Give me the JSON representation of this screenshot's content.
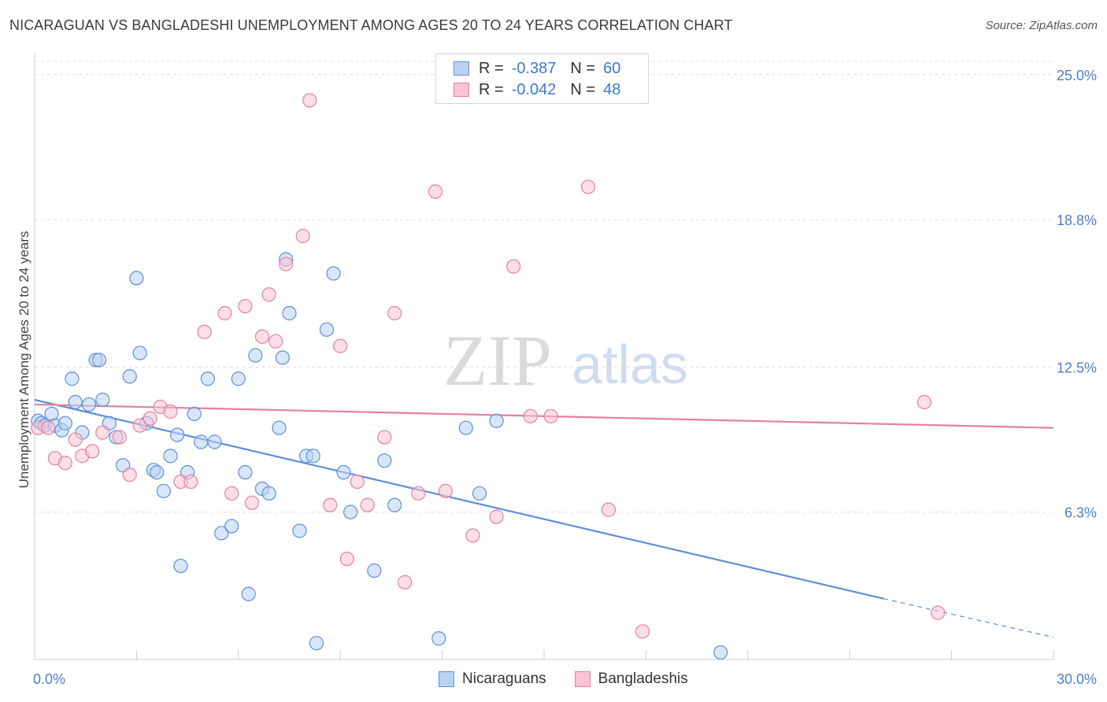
{
  "title": "NICARAGUAN VS BANGLADESHI UNEMPLOYMENT AMONG AGES 20 TO 24 YEARS CORRELATION CHART",
  "source": "Source: ZipAtlas.com",
  "watermark": {
    "zip": "ZIP",
    "atlas": "atlas"
  },
  "legend": {
    "rows": [
      {
        "r_label": "R =",
        "r_value": "-0.387",
        "n_label": "N =",
        "n_value": "60",
        "fill": "#b9d2f2",
        "stroke": "#5b8fd9"
      },
      {
        "r_label": "R =",
        "r_value": "-0.042",
        "n_label": "N =",
        "n_value": "48",
        "fill": "#f9c3d3",
        "stroke": "#e57fa0"
      }
    ]
  },
  "bottom_legend": [
    "Nicaraguans",
    "Bangladeshis"
  ],
  "chart_data": {
    "type": "scatter",
    "ylabel": "Unemployment Among Ages 20 to 24 years",
    "xlim": [
      0,
      30
    ],
    "ylim": [
      0,
      25.9
    ],
    "x_tick_labels": [
      {
        "value": 0,
        "label": "0.0%"
      },
      {
        "value": 30,
        "label": "30.0%"
      }
    ],
    "y_tick_labels": [
      {
        "value": 25.0,
        "label": "25.0%"
      },
      {
        "value": 18.8,
        "label": "18.8%"
      },
      {
        "value": 12.5,
        "label": "12.5%"
      },
      {
        "value": 6.3,
        "label": "6.3%"
      }
    ],
    "grid": true,
    "series": [
      {
        "name": "Nicaraguans",
        "color": "#5b8fd9",
        "fill": "#b9d2f2",
        "trend": {
          "x0": 0,
          "y0": 11.1,
          "x1": 25.0,
          "y1": 2.6,
          "dash_to_x": 30,
          "dash_to_y": 0.95
        },
        "points": [
          [
            0.1,
            10.2
          ],
          [
            0.2,
            10.1
          ],
          [
            0.3,
            10.0
          ],
          [
            0.5,
            10.5
          ],
          [
            0.6,
            10.0
          ],
          [
            0.8,
            9.8
          ],
          [
            0.9,
            10.1
          ],
          [
            1.1,
            12.0
          ],
          [
            1.2,
            11.0
          ],
          [
            1.4,
            9.7
          ],
          [
            1.6,
            10.9
          ],
          [
            1.8,
            12.8
          ],
          [
            1.9,
            12.8
          ],
          [
            2.0,
            11.1
          ],
          [
            2.2,
            10.1
          ],
          [
            2.4,
            9.5
          ],
          [
            2.6,
            8.3
          ],
          [
            2.8,
            12.1
          ],
          [
            3.0,
            16.3
          ],
          [
            3.1,
            13.1
          ],
          [
            3.3,
            10.1
          ],
          [
            3.5,
            8.1
          ],
          [
            3.6,
            8.0
          ],
          [
            3.8,
            7.2
          ],
          [
            4.0,
            8.7
          ],
          [
            4.2,
            9.6
          ],
          [
            4.3,
            4.0
          ],
          [
            4.5,
            8.0
          ],
          [
            4.7,
            10.5
          ],
          [
            4.9,
            9.3
          ],
          [
            5.1,
            12.0
          ],
          [
            5.3,
            9.3
          ],
          [
            5.5,
            5.4
          ],
          [
            5.8,
            5.7
          ],
          [
            6.0,
            12.0
          ],
          [
            6.2,
            8.0
          ],
          [
            6.3,
            2.8
          ],
          [
            6.5,
            13.0
          ],
          [
            6.7,
            7.3
          ],
          [
            6.9,
            7.1
          ],
          [
            7.2,
            9.9
          ],
          [
            7.3,
            12.9
          ],
          [
            7.4,
            17.1
          ],
          [
            7.5,
            14.8
          ],
          [
            7.8,
            5.5
          ],
          [
            8.0,
            8.7
          ],
          [
            8.2,
            8.7
          ],
          [
            8.3,
            0.7
          ],
          [
            8.6,
            14.1
          ],
          [
            8.8,
            16.5
          ],
          [
            9.1,
            8.0
          ],
          [
            9.3,
            6.3
          ],
          [
            10.0,
            3.8
          ],
          [
            10.3,
            8.5
          ],
          [
            10.6,
            6.6
          ],
          [
            11.9,
            0.9
          ],
          [
            12.7,
            9.9
          ],
          [
            13.1,
            7.1
          ],
          [
            13.6,
            10.2
          ],
          [
            20.2,
            0.3
          ]
        ]
      },
      {
        "name": "Bangladeshis",
        "color": "#e57fa0",
        "fill": "#f9c3d3",
        "trend": {
          "x0": 0,
          "y0": 10.9,
          "x1": 30,
          "y1": 9.9
        },
        "points": [
          [
            0.1,
            9.9
          ],
          [
            0.4,
            9.9
          ],
          [
            0.6,
            8.6
          ],
          [
            0.9,
            8.4
          ],
          [
            1.2,
            9.4
          ],
          [
            1.4,
            8.7
          ],
          [
            1.7,
            8.9
          ],
          [
            2.0,
            9.7
          ],
          [
            2.5,
            9.5
          ],
          [
            2.8,
            7.9
          ],
          [
            3.1,
            10.0
          ],
          [
            3.4,
            10.3
          ],
          [
            3.7,
            10.8
          ],
          [
            4.0,
            10.6
          ],
          [
            4.3,
            7.6
          ],
          [
            4.6,
            7.6
          ],
          [
            5.0,
            14.0
          ],
          [
            5.6,
            14.8
          ],
          [
            5.8,
            7.1
          ],
          [
            6.2,
            15.1
          ],
          [
            6.4,
            6.7
          ],
          [
            6.7,
            13.8
          ],
          [
            6.9,
            15.6
          ],
          [
            7.1,
            13.6
          ],
          [
            7.4,
            16.9
          ],
          [
            7.9,
            18.1
          ],
          [
            8.1,
            23.9
          ],
          [
            8.7,
            6.6
          ],
          [
            9.0,
            13.4
          ],
          [
            9.2,
            4.3
          ],
          [
            9.5,
            7.6
          ],
          [
            9.8,
            6.6
          ],
          [
            10.3,
            9.5
          ],
          [
            10.6,
            14.8
          ],
          [
            10.9,
            3.3
          ],
          [
            11.3,
            7.1
          ],
          [
            11.8,
            20.0
          ],
          [
            12.1,
            7.2
          ],
          [
            12.9,
            5.3
          ],
          [
            13.6,
            6.1
          ],
          [
            14.1,
            16.8
          ],
          [
            14.6,
            10.4
          ],
          [
            15.2,
            10.4
          ],
          [
            16.3,
            20.2
          ],
          [
            16.9,
            6.4
          ],
          [
            17.9,
            1.2
          ],
          [
            26.2,
            11.0
          ],
          [
            26.6,
            2.0
          ]
        ]
      }
    ]
  }
}
